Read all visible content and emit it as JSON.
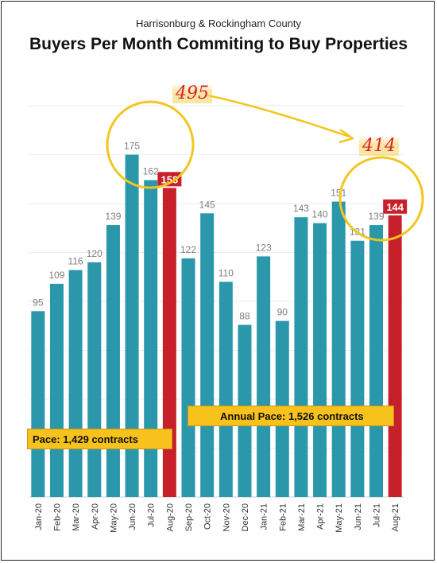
{
  "header": {
    "subtitle": "Harrisonburg & Rockingham County",
    "title": "Buyers Per Month Commiting to Buy Properties"
  },
  "annotations": {
    "left_total": "495",
    "right_total": "414",
    "pace_2020": "Pace: 1,429 contracts",
    "pace_2021": "Annual Pace: 1,526 contracts"
  },
  "colors": {
    "bar": "#2a97ab",
    "highlight_bar": "#c8202a",
    "circle": "#f2c61f",
    "pace_box": "#f7c21b",
    "handwriting": "#d9232b"
  },
  "chart_data": {
    "type": "bar",
    "categories": [
      "Jan-20",
      "Feb-20",
      "Mar-20",
      "Apr-20",
      "May-20",
      "Jun-20",
      "Jul-20",
      "Aug-20",
      "Sep-20",
      "Oct-20",
      "Nov-20",
      "Dec-20",
      "Jan-21",
      "Feb-21",
      "Mar-21",
      "Apr-21",
      "May-21",
      "Jun-21",
      "Jul-21",
      "Aug-21"
    ],
    "values": [
      95,
      109,
      116,
      120,
      139,
      175,
      162,
      158,
      122,
      145,
      110,
      88,
      123,
      90,
      143,
      140,
      151,
      131,
      139,
      144
    ],
    "highlighted": [
      "Aug-20",
      "Aug-21"
    ],
    "title": "Buyers Per Month Commiting to Buy Properties",
    "xlabel": "",
    "ylabel": "",
    "ylim": [
      0,
      200
    ],
    "grid": true,
    "legend": "none"
  }
}
